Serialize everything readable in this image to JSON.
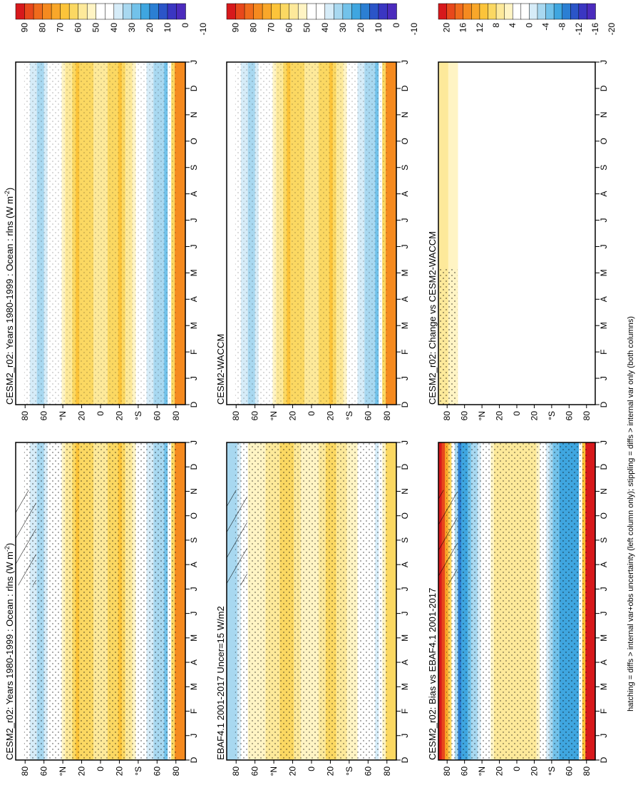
{
  "figure": {
    "footnote": "hatching = diffs > internal var+obs uncertainty (left column only); stippling = diffs > internal var only (both columns)"
  },
  "colorbars": {
    "absolute": {
      "labels": [
        "90",
        "80",
        "70",
        "60",
        "50",
        "40",
        "30",
        "20",
        "10",
        "0",
        "-10"
      ],
      "colors": [
        "#d7191c",
        "#e8481b",
        "#f06b1c",
        "#f58a1f",
        "#f9a72a",
        "#fcc43a",
        "#fbd862",
        "#fde99a",
        "#fff4c4",
        "#ffffff",
        "#ffffff",
        "#d6ecf8",
        "#a8d8f0",
        "#72c2ea",
        "#3fa6e0",
        "#2b7fd3",
        "#2b55c8",
        "#3a36c2",
        "#4b2bbd"
      ]
    },
    "difference": {
      "labels": [
        "20",
        "16",
        "12",
        "8",
        "4",
        "0",
        "-4",
        "-8",
        "-12",
        "-16",
        "-20"
      ],
      "colors": [
        "#d7191c",
        "#e8481b",
        "#f06b1c",
        "#f58a1f",
        "#f9a72a",
        "#fcc43a",
        "#fbd862",
        "#fde99a",
        "#fff4c4",
        "#ffffff",
        "#ffffff",
        "#d6ecf8",
        "#a8d8f0",
        "#72c2ea",
        "#3fa6e0",
        "#2b7fd3",
        "#2b55c8",
        "#3a36c2",
        "#4b2bbd"
      ]
    }
  },
  "chart_data": [
    {
      "id": "right-top",
      "type": "heatmap",
      "title": "CESM2_r02: Years 1980-1999 : Ocean : rlns (W m",
      "title_sup": "-2",
      "title_end": ")",
      "variable": "rlns",
      "units": "W m-2",
      "colorbar": "absolute",
      "months": [
        "D",
        "J",
        "F",
        "M",
        "A",
        "M",
        "J",
        "J",
        "A",
        "S",
        "O",
        "N",
        "D",
        "J"
      ],
      "lat_ticks": [
        "80",
        "60",
        "°N",
        "20",
        "0",
        "20",
        "°S",
        "60",
        "80"
      ],
      "zonal_profile": [
        {
          "lat": 80,
          "value": 38
        },
        {
          "lat": 65,
          "value": 22
        },
        {
          "lat": 45,
          "value": 40
        },
        {
          "lat": 25,
          "value": 62
        },
        {
          "lat": 10,
          "value": 55
        },
        {
          "lat": 0,
          "value": 50
        },
        {
          "lat": -20,
          "value": 62
        },
        {
          "lat": -40,
          "value": 42
        },
        {
          "lat": -55,
          "value": 25
        },
        {
          "lat": -70,
          "value": 18
        },
        {
          "lat": -80,
          "value": 75
        }
      ]
    },
    {
      "id": "right-middle",
      "type": "heatmap",
      "title": "CESM2-WACCM",
      "variable": "rlns",
      "units": "W m-2",
      "colorbar": "absolute",
      "months": [
        "D",
        "J",
        "F",
        "M",
        "A",
        "M",
        "J",
        "J",
        "A",
        "S",
        "O",
        "N",
        "D",
        "J"
      ],
      "lat_ticks": [
        "80",
        "60",
        "°N",
        "20",
        "0",
        "20",
        "°S",
        "60",
        "80"
      ],
      "zonal_profile": [
        {
          "lat": 80,
          "value": 38
        },
        {
          "lat": 65,
          "value": 22
        },
        {
          "lat": 45,
          "value": 40
        },
        {
          "lat": 25,
          "value": 62
        },
        {
          "lat": 10,
          "value": 55
        },
        {
          "lat": 0,
          "value": 50
        },
        {
          "lat": -20,
          "value": 62
        },
        {
          "lat": -40,
          "value": 42
        },
        {
          "lat": -55,
          "value": 25
        },
        {
          "lat": -70,
          "value": 18
        },
        {
          "lat": -80,
          "value": 75
        }
      ]
    },
    {
      "id": "right-bottom",
      "type": "heatmap",
      "title": "CESM2_r02: Change vs CESM2-WACCM",
      "variable": "rlns",
      "units": "W m-2",
      "colorbar": "difference",
      "months": [
        "D",
        "J",
        "F",
        "M",
        "A",
        "M",
        "J",
        "J",
        "A",
        "S",
        "O",
        "N",
        "D",
        "J"
      ],
      "lat_ticks": [
        "80",
        "60",
        "°N",
        "20",
        "0",
        "20",
        "°S",
        "60",
        "80"
      ],
      "zonal_profile": [
        {
          "lat": 80,
          "value": 4
        },
        {
          "lat": 60,
          "value": 0
        },
        {
          "lat": 20,
          "value": 0
        },
        {
          "lat": 0,
          "value": -2
        },
        {
          "lat": -40,
          "value": 0
        },
        {
          "lat": -80,
          "value": 0
        }
      ]
    },
    {
      "id": "left-top",
      "type": "heatmap",
      "title": "CESM2_r02: Years 1980-1999 : Ocean : rlns (W m",
      "title_sup": "-2",
      "title_end": ")",
      "variable": "rlns",
      "units": "W m-2",
      "colorbar": "absolute",
      "months": [
        "D",
        "J",
        "F",
        "M",
        "A",
        "M",
        "J",
        "J",
        "A",
        "S",
        "O",
        "N",
        "D",
        "J"
      ],
      "lat_ticks": [
        "80",
        "60",
        "°N",
        "20",
        "0",
        "20",
        "°S",
        "60",
        "80"
      ],
      "zonal_profile": [
        {
          "lat": 80,
          "value": 38
        },
        {
          "lat": 65,
          "value": 22
        },
        {
          "lat": 45,
          "value": 40
        },
        {
          "lat": 25,
          "value": 62
        },
        {
          "lat": 10,
          "value": 55
        },
        {
          "lat": 0,
          "value": 50
        },
        {
          "lat": -20,
          "value": 62
        },
        {
          "lat": -40,
          "value": 42
        },
        {
          "lat": -55,
          "value": 25
        },
        {
          "lat": -70,
          "value": 18
        },
        {
          "lat": -80,
          "value": 75
        }
      ]
    },
    {
      "id": "left-middle",
      "type": "heatmap",
      "title": "EBAF4.1 2001-2017 Uncer=15 W/m2",
      "variable": "rlns",
      "units": "W m-2",
      "colorbar": "absolute",
      "months": [
        "D",
        "J",
        "F",
        "M",
        "A",
        "M",
        "J",
        "J",
        "A",
        "S",
        "O",
        "N",
        "D",
        "J"
      ],
      "lat_ticks": [
        "80",
        "60",
        "°N",
        "20",
        "0",
        "20",
        "°S",
        "60",
        "80"
      ],
      "zonal_profile": [
        {
          "lat": 80,
          "value": 25
        },
        {
          "lat": 65,
          "value": 45
        },
        {
          "lat": 45,
          "value": 50
        },
        {
          "lat": 25,
          "value": 58
        },
        {
          "lat": 10,
          "value": 48
        },
        {
          "lat": 0,
          "value": 45
        },
        {
          "lat": -20,
          "value": 58
        },
        {
          "lat": -40,
          "value": 48
        },
        {
          "lat": -55,
          "value": 40
        },
        {
          "lat": -70,
          "value": 30
        },
        {
          "lat": -80,
          "value": 55
        }
      ]
    },
    {
      "id": "left-bottom",
      "type": "heatmap",
      "title": "CESM2_r02: Bias vs EBAF4.1 2001-2017",
      "variable": "rlns",
      "units": "W m-2",
      "colorbar": "difference",
      "months": [
        "D",
        "J",
        "F",
        "M",
        "A",
        "M",
        "J",
        "J",
        "A",
        "S",
        "O",
        "N",
        "D",
        "J"
      ],
      "lat_ticks": [
        "80",
        "60",
        "°N",
        "20",
        "0",
        "20",
        "°S",
        "60",
        "80"
      ],
      "zonal_profile": [
        {
          "lat": 85,
          "value": 20
        },
        {
          "lat": 65,
          "value": -14
        },
        {
          "lat": 45,
          "value": -5
        },
        {
          "lat": 25,
          "value": 4
        },
        {
          "lat": 0,
          "value": 4
        },
        {
          "lat": -20,
          "value": 4
        },
        {
          "lat": -45,
          "value": -10
        },
        {
          "lat": -70,
          "value": -12
        },
        {
          "lat": -80,
          "value": 20
        }
      ]
    }
  ]
}
